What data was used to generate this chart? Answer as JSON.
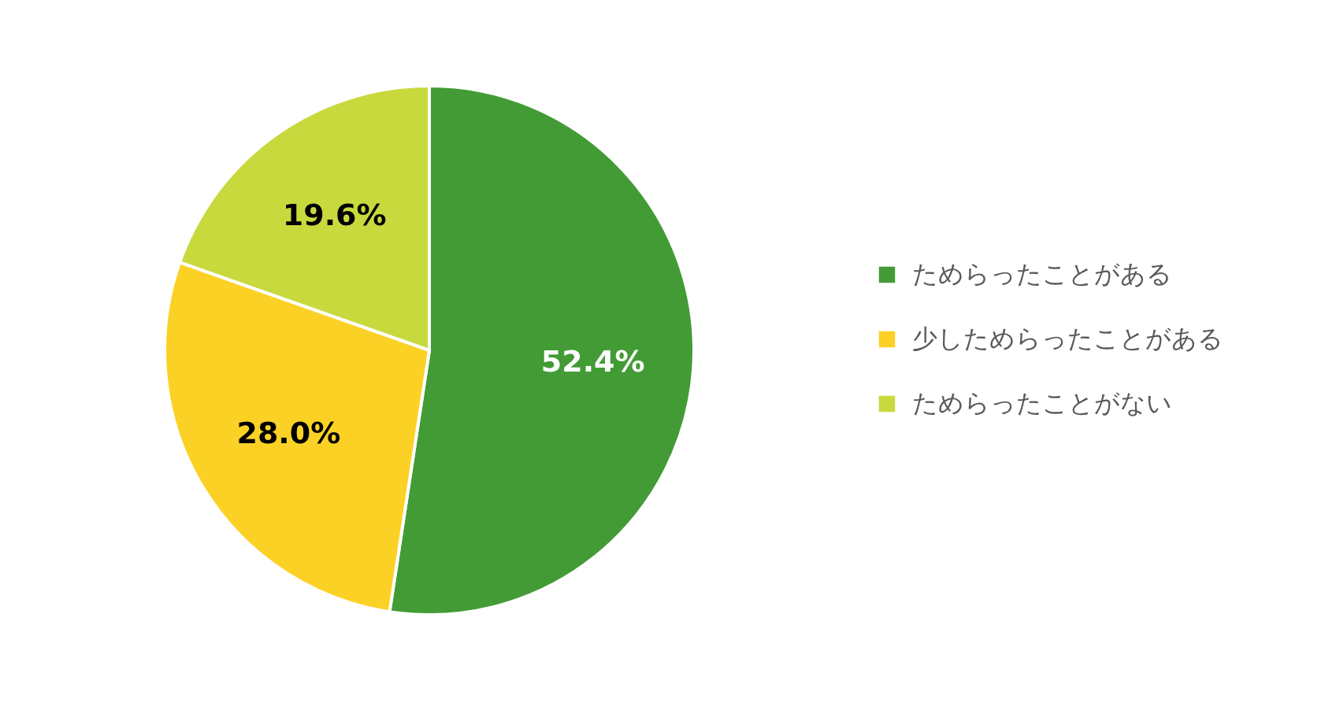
{
  "chart_data": {
    "type": "pie",
    "categories": [
      "ためらったことがある",
      "少しためらったことがある",
      "ためらったことがない"
    ],
    "values": [
      52.4,
      28.0,
      19.6
    ],
    "colors": [
      "#429b35",
      "#fbd126",
      "#c8d93e"
    ],
    "value_labels": [
      "52.4%",
      "28.0%",
      "19.6%"
    ],
    "legend": "right"
  }
}
